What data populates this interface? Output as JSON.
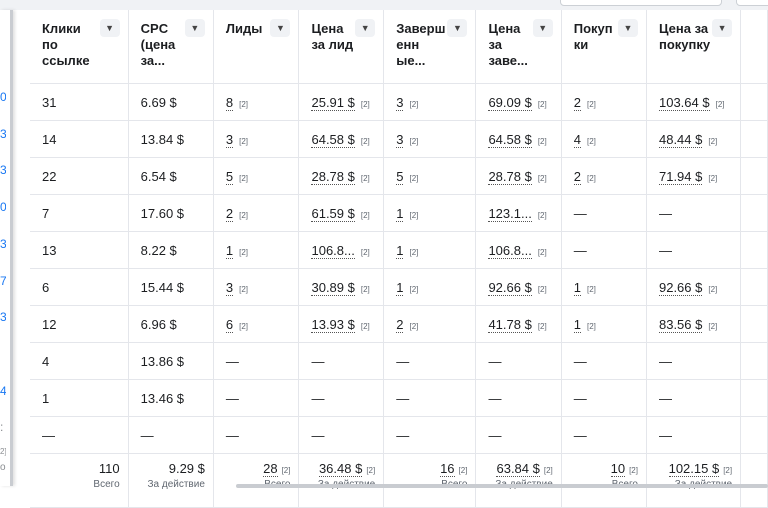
{
  "columns": [
    {
      "title": "Клики по ссылке"
    },
    {
      "title": "CPC (цена за..."
    },
    {
      "title": "Лиды"
    },
    {
      "title": "Цена за лид"
    },
    {
      "title": "Заверш енн ые..."
    },
    {
      "title": "Цена за заве..."
    },
    {
      "title": "Покуп ки"
    },
    {
      "title": "Цена за покупку"
    }
  ],
  "footnote_marker": "[2]",
  "left_edge_marks": [
    "0",
    "3",
    "3",
    "0",
    "3",
    "7",
    "3",
    "",
    "4",
    ":"
  ],
  "rows": [
    [
      "31",
      "6.69 $",
      "8",
      "25.91 $",
      "3",
      "69.09 $",
      "2",
      "103.64 $"
    ],
    [
      "14",
      "13.84 $",
      "3",
      "64.58 $",
      "3",
      "64.58 $",
      "4",
      "48.44 $"
    ],
    [
      "22",
      "6.54 $",
      "5",
      "28.78 $",
      "5",
      "28.78 $",
      "2",
      "71.94 $"
    ],
    [
      "7",
      "17.60 $",
      "2",
      "61.59 $",
      "1",
      "123.1...",
      "—",
      "—"
    ],
    [
      "13",
      "8.22 $",
      "1",
      "106.8...",
      "1",
      "106.8...",
      "—",
      "—"
    ],
    [
      "6",
      "15.44 $",
      "3",
      "30.89 $",
      "1",
      "92.66 $",
      "1",
      "92.66 $"
    ],
    [
      "12",
      "6.96 $",
      "6",
      "13.93 $",
      "2",
      "41.78 $",
      "1",
      "83.56 $"
    ],
    [
      "4",
      "13.86 $",
      "—",
      "—",
      "—",
      "—",
      "—",
      "—"
    ],
    [
      "1",
      "13.46 $",
      "—",
      "—",
      "—",
      "—",
      "—",
      "—"
    ],
    [
      "—",
      "—",
      "—",
      "—",
      "—",
      "—",
      "—",
      "—"
    ]
  ],
  "summary": [
    {
      "value": "110",
      "note": "",
      "label": "Всего"
    },
    {
      "value": "9.29 $",
      "note": "",
      "label": "За действие"
    },
    {
      "value": "28",
      "note": "[2]",
      "label": "Всего"
    },
    {
      "value": "36.48 $",
      "note": "[2]",
      "label": "За действие"
    },
    {
      "value": "16",
      "note": "[2]",
      "label": "Всего"
    },
    {
      "value": "63.84 $",
      "note": "[2]",
      "label": "За действие"
    },
    {
      "value": "10",
      "note": "[2]",
      "label": "Всего"
    },
    {
      "value": "102.15 $",
      "note": "[2]",
      "label": "За действие"
    }
  ],
  "summary_edge": {
    "note": "2]",
    "label": "о"
  }
}
